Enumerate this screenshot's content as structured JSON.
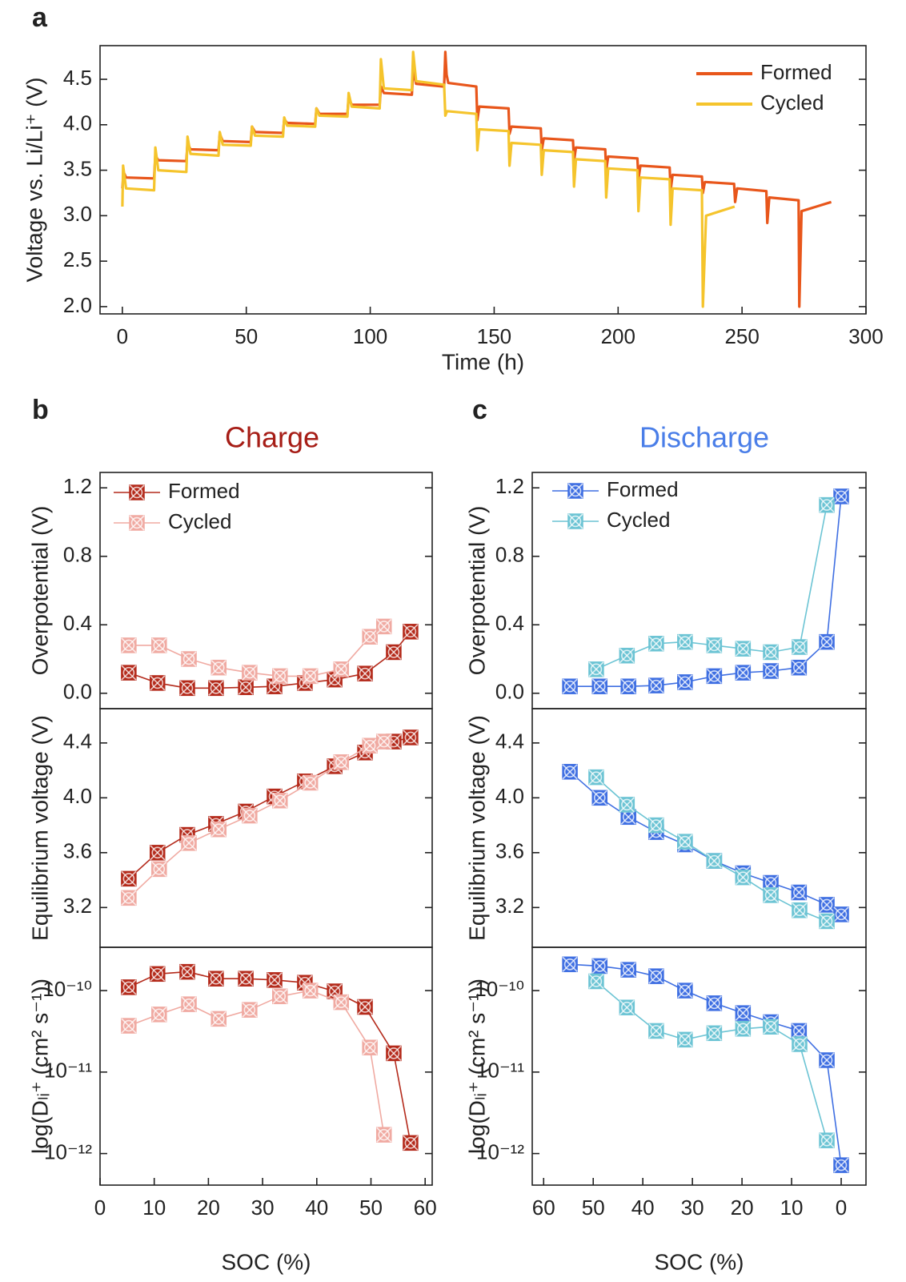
{
  "chart_data": [
    {
      "type": "line",
      "panel_label": "a",
      "xlabel": "Time (h)",
      "ylabel": "Voltage vs. Li/Li⁺ (V)",
      "xlim": [
        -9,
        300
      ],
      "xticks": [
        0,
        50,
        100,
        150,
        200,
        250,
        300
      ],
      "ylim": [
        1.92,
        4.87
      ],
      "yticks": [
        {
          "value": 2,
          "label": "2.0"
        },
        2.5,
        {
          "value": 3,
          "label": "3.0"
        },
        3.5,
        {
          "value": 4,
          "label": "4.0"
        },
        4.5
      ],
      "legend": "upper right",
      "series": [
        {
          "name": "Formed",
          "color": "#e8561b",
          "x": [
            0,
            0.5,
            1.5,
            12.8,
            13.3,
            14.5,
            25.8,
            26.3,
            27.5,
            38.8,
            39.3,
            40.5,
            51.8,
            52.3,
            53.5,
            64.8,
            65.3,
            66.5,
            77.8,
            78.3,
            79.5,
            90.8,
            91.3,
            92.5,
            103.8,
            104.3,
            105.5,
            116.8,
            117.3,
            118.5,
            129.8,
            130.3,
            130.8,
            131.5,
            142.8,
            143.2,
            144,
            155.8,
            156.2,
            157,
            168.8,
            169.2,
            170,
            181.8,
            182.2,
            183,
            194.8,
            195.2,
            196,
            207.8,
            208.2,
            209,
            220.8,
            221.2,
            222,
            233.8,
            234.2,
            235,
            246.8,
            247.2,
            248,
            259.8,
            260.2,
            261,
            272.8,
            273.1,
            274,
            286
          ],
          "values": [
            3.3,
            3.48,
            3.42,
            3.41,
            3.66,
            3.61,
            3.6,
            3.8,
            3.73,
            3.72,
            3.9,
            3.82,
            3.81,
            3.98,
            3.92,
            3.91,
            4.06,
            4.02,
            4.01,
            4.18,
            4.12,
            4.12,
            4.3,
            4.22,
            4.22,
            4.42,
            4.35,
            4.33,
            4.6,
            4.45,
            4.42,
            4.8,
            4.55,
            4.46,
            4.42,
            4.05,
            4.2,
            4.18,
            3.9,
            3.98,
            3.96,
            3.72,
            3.85,
            3.83,
            3.6,
            3.75,
            3.73,
            3.5,
            3.65,
            3.63,
            3.4,
            3.55,
            3.53,
            3.28,
            3.45,
            3.43,
            3.25,
            3.37,
            3.35,
            3.15,
            3.3,
            3.27,
            2.92,
            3.2,
            3.17,
            2.0,
            3.05,
            3.15
          ]
        },
        {
          "name": "Cycled",
          "color": "#f5c42c",
          "x": [
            0,
            0.3,
            1.5,
            12.8,
            13.3,
            14.5,
            25.8,
            26.3,
            27.5,
            38.8,
            39.3,
            40.5,
            51.8,
            52.3,
            53.5,
            64.8,
            65.3,
            66.5,
            77.8,
            78.3,
            79.5,
            90.8,
            91.3,
            92.5,
            103.8,
            104.3,
            105.5,
            116.8,
            117.3,
            118.5,
            129.8,
            130.3,
            131,
            142.8,
            143.2,
            144,
            155.8,
            156.2,
            157,
            168.8,
            169.2,
            170,
            181.8,
            182.2,
            183,
            194.8,
            195.2,
            196,
            207.8,
            208.2,
            209,
            220.8,
            221.2,
            222,
            233.8,
            234.2,
            235.5,
            247
          ],
          "values": [
            3.1,
            3.55,
            3.3,
            3.28,
            3.75,
            3.5,
            3.48,
            3.87,
            3.68,
            3.66,
            3.92,
            3.78,
            3.77,
            3.98,
            3.88,
            3.87,
            4.08,
            3.99,
            3.98,
            4.18,
            4.1,
            4.09,
            4.35,
            4.2,
            4.18,
            4.72,
            4.4,
            4.38,
            4.8,
            4.48,
            4.44,
            4.1,
            4.15,
            4.12,
            3.72,
            3.95,
            3.93,
            3.55,
            3.8,
            3.78,
            3.45,
            3.72,
            3.7,
            3.32,
            3.62,
            3.6,
            3.2,
            3.52,
            3.5,
            3.05,
            3.42,
            3.4,
            2.9,
            3.3,
            3.28,
            2.0,
            3.0,
            3.1
          ]
        }
      ]
    },
    {
      "type": "line",
      "markers": true,
      "panel_label": "b",
      "title": "Charge",
      "title_color": "#a61d16",
      "ylabel": "Overpotential (V)",
      "xlim": [
        0,
        61.3
      ],
      "ylim": [
        -0.09,
        1.29
      ],
      "yticks": [
        {
          "value": 0,
          "label": "0.0"
        },
        0.4,
        0.8,
        1.2
      ],
      "legend": "upper left",
      "series": [
        {
          "name": "Formed",
          "color": "#b42a1b",
          "x": [
            5.3,
            10.6,
            16.1,
            21.4,
            26.9,
            32.2,
            37.8,
            43.3,
            48.9,
            54.2,
            57.3
          ],
          "values": [
            0.12,
            0.06,
            0.03,
            0.03,
            0.035,
            0.04,
            0.06,
            0.08,
            0.115,
            0.24,
            0.36
          ]
        },
        {
          "name": "Cycled",
          "color": "#f0aaa2",
          "x": [
            5.3,
            10.9,
            16.4,
            21.9,
            27.6,
            33.2,
            38.8,
            44.5,
            49.8,
            52.4
          ],
          "values": [
            0.28,
            0.28,
            0.2,
            0.15,
            0.12,
            0.1,
            0.1,
            0.14,
            0.33,
            0.39
          ]
        }
      ]
    },
    {
      "type": "line",
      "markers": true,
      "ylabel": "Equilibrium voltage (V)",
      "xlim": [
        0,
        61.3
      ],
      "ylim": [
        2.91,
        4.65
      ],
      "yticks": [
        3.2,
        3.6,
        {
          "value": 4,
          "label": "4.0"
        },
        4.4
      ],
      "series": [
        {
          "color": "#b42a1b",
          "x": [
            5.3,
            10.6,
            16.1,
            21.4,
            26.9,
            32.2,
            37.8,
            43.3,
            48.9,
            54.2,
            57.3
          ],
          "values": [
            3.41,
            3.6,
            3.73,
            3.81,
            3.9,
            4.01,
            4.12,
            4.23,
            4.33,
            4.41,
            4.44
          ]
        },
        {
          "color": "#f0aaa2",
          "x": [
            5.3,
            10.9,
            16.4,
            21.9,
            27.6,
            33.2,
            38.8,
            44.5,
            49.8,
            52.4
          ],
          "values": [
            3.27,
            3.48,
            3.67,
            3.77,
            3.87,
            3.98,
            4.11,
            4.26,
            4.38,
            4.41
          ]
        }
      ]
    },
    {
      "type": "line",
      "markers": true,
      "log_y": true,
      "xlabel": "SOC (%)",
      "ylabel": "log(Dₗᵢ⁺ (cm² s⁻¹))",
      "xlim": [
        0,
        61.3
      ],
      "xticks": [
        0,
        10,
        20,
        30,
        40,
        50,
        60
      ],
      "ylim": [
        4.1e-13,
        3.4e-10
      ],
      "yticks": [
        {
          "value": 1e-12,
          "label": "10⁻¹²"
        },
        {
          "value": 1e-11,
          "label": "10⁻¹¹"
        },
        {
          "value": 1e-10,
          "label": "10⁻¹⁰"
        }
      ],
      "series": [
        {
          "color": "#b42a1b",
          "x": [
            5.3,
            10.6,
            16.1,
            21.4,
            26.9,
            32.2,
            37.8,
            43.3,
            48.9,
            54.2,
            57.3
          ],
          "values": [
            1.1e-10,
            1.6e-10,
            1.7e-10,
            1.4e-10,
            1.4e-10,
            1.35e-10,
            1.25e-10,
            9.8e-11,
            6.3e-11,
            1.7e-11,
            1.35e-12
          ]
        },
        {
          "color": "#f0aaa2",
          "x": [
            5.3,
            10.9,
            16.4,
            21.9,
            27.6,
            33.2,
            38.8,
            44.5,
            49.8,
            52.4
          ],
          "values": [
            3.7e-11,
            5.1e-11,
            6.8e-11,
            4.5e-11,
            5.8e-11,
            8.5e-11,
            1e-10,
            7.2e-11,
            2e-11,
            1.7e-12
          ]
        }
      ]
    },
    {
      "type": "line",
      "markers": true,
      "panel_label": "c",
      "title": "Discharge",
      "title_color": "#4a7ee8",
      "ylabel": "Overpotential (V)",
      "xlim": [
        62.3,
        -5
      ],
      "ylim": [
        -0.09,
        1.29
      ],
      "yticks": [
        {
          "value": 0,
          "label": "0.0"
        },
        0.4,
        0.8,
        1.2
      ],
      "legend": "upper left",
      "series": [
        {
          "name": "Formed",
          "color": "#3f6fe2",
          "x": [
            54.7,
            48.7,
            42.9,
            37.3,
            31.5,
            25.6,
            19.8,
            14.2,
            8.5,
            2.9,
            0
          ],
          "values": [
            0.04,
            0.04,
            0.04,
            0.045,
            0.065,
            0.1,
            0.12,
            0.13,
            0.15,
            0.3,
            1.15
          ]
        },
        {
          "name": "Cycled",
          "color": "#6cc4d4",
          "x": [
            49.4,
            43.2,
            37.3,
            31.5,
            25.6,
            19.8,
            14.2,
            8.4,
            2.9
          ],
          "values": [
            0.14,
            0.22,
            0.29,
            0.3,
            0.28,
            0.26,
            0.24,
            0.27,
            1.1
          ]
        }
      ]
    },
    {
      "type": "line",
      "markers": true,
      "ylabel": "Equilibrium voltage (V)",
      "xlim": [
        62.3,
        -5
      ],
      "ylim": [
        2.91,
        4.65
      ],
      "yticks": [
        3.2,
        3.6,
        {
          "value": 4,
          "label": "4.0"
        },
        4.4
      ],
      "series": [
        {
          "color": "#3f6fe2",
          "x": [
            54.7,
            48.7,
            42.9,
            37.3,
            31.5,
            25.6,
            19.8,
            14.2,
            8.5,
            2.9,
            0
          ],
          "values": [
            4.19,
            4.0,
            3.86,
            3.75,
            3.66,
            3.54,
            3.45,
            3.38,
            3.31,
            3.22,
            3.15
          ]
        },
        {
          "color": "#6cc4d4",
          "x": [
            49.4,
            43.2,
            37.3,
            31.5,
            25.6,
            19.8,
            14.2,
            8.4,
            2.9
          ],
          "values": [
            4.15,
            3.95,
            3.8,
            3.68,
            3.54,
            3.42,
            3.29,
            3.18,
            3.1
          ]
        }
      ]
    },
    {
      "type": "line",
      "markers": true,
      "log_y": true,
      "xlabel": "SOC (%)",
      "ylabel": "log(Dₗᵢ⁺ (cm² s⁻¹))",
      "xlim": [
        62.3,
        -5
      ],
      "xticks": [
        60,
        50,
        40,
        30,
        20,
        10,
        0
      ],
      "ylim": [
        4.1e-13,
        3.4e-10
      ],
      "yticks": [
        {
          "value": 1e-12,
          "label": "10⁻¹²"
        },
        {
          "value": 1e-11,
          "label": "10⁻¹¹"
        },
        {
          "value": 1e-10,
          "label": "10⁻¹⁰"
        }
      ],
      "series": [
        {
          "color": "#3f6fe2",
          "x": [
            54.7,
            48.7,
            42.9,
            37.3,
            31.5,
            25.6,
            19.8,
            14.2,
            8.5,
            2.9,
            0
          ],
          "values": [
            2.1e-10,
            2e-10,
            1.8e-10,
            1.5e-10,
            1e-10,
            7e-11,
            5.3e-11,
            4.1e-11,
            3.2e-11,
            1.4e-11,
            7.2e-13
          ]
        },
        {
          "color": "#6cc4d4",
          "x": [
            49.4,
            43.2,
            37.3,
            31.5,
            25.6,
            19.8,
            14.2,
            8.4,
            2.9
          ],
          "values": [
            1.3e-10,
            6.2e-11,
            3.2e-11,
            2.5e-11,
            3e-11,
            3.4e-11,
            3.6e-11,
            2.2e-11,
            1.45e-12
          ]
        }
      ]
    }
  ]
}
